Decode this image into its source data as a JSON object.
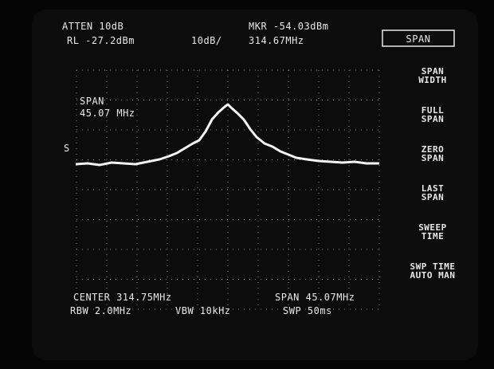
{
  "header": {
    "atten": "ATTEN 10dB",
    "marker": "MKR -54.03dBm",
    "ref_level": "RL -27.2dBm",
    "scale": "10dB/",
    "marker_freq": "314.67MHz"
  },
  "active_function": "SPAN",
  "menu": [
    [
      "SPAN",
      "WIDTH"
    ],
    [
      "FULL",
      "SPAN"
    ],
    [
      "ZERO",
      "SPAN"
    ],
    [
      "LAST",
      "SPAN"
    ],
    [
      "SWEEP",
      "TIME"
    ],
    [
      "SWP TIME",
      "AUTO MAN"
    ]
  ],
  "annotation": [
    "SPAN",
    "45.07 MHz"
  ],
  "side_marker": "S",
  "footer": {
    "center": "CENTER 314.75MHz",
    "span": "SPAN 45.07MHz",
    "rbw": "RBW 2.0MHz",
    "vbw": "VBW 10kHz",
    "sweep": "SWP 50ms"
  }
}
